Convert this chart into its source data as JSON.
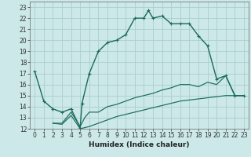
{
  "title": "",
  "xlabel": "Humidex (Indice chaleur)",
  "ylabel": "",
  "bg_color": "#cce8e8",
  "grid_color": "#aacece",
  "line_color": "#1a6b5a",
  "xlim": [
    -0.5,
    23.5
  ],
  "ylim": [
    12,
    23.5
  ],
  "xticks": [
    0,
    1,
    2,
    3,
    4,
    5,
    6,
    7,
    8,
    9,
    10,
    11,
    12,
    13,
    14,
    15,
    16,
    17,
    18,
    19,
    20,
    21,
    22,
    23
  ],
  "yticks": [
    12,
    13,
    14,
    15,
    16,
    17,
    18,
    19,
    20,
    21,
    22,
    23
  ],
  "series1_x": [
    0,
    1,
    2,
    3,
    4,
    5,
    5.2,
    6,
    7,
    8,
    9,
    10,
    11,
    12,
    12.5,
    13,
    14,
    15,
    16,
    17,
    18,
    19,
    20,
    21,
    22,
    23
  ],
  "series1_y": [
    17.2,
    14.5,
    13.8,
    13.5,
    13.8,
    12.1,
    14.3,
    17.0,
    19.0,
    19.8,
    20.0,
    20.5,
    22.0,
    22.0,
    22.7,
    22.0,
    22.2,
    21.5,
    21.5,
    21.5,
    20.4,
    19.5,
    16.5,
    16.8,
    15.0,
    15.0
  ],
  "series2_x": [
    2,
    3,
    4,
    5,
    5.5,
    6,
    7,
    8,
    9,
    10,
    11,
    12,
    13,
    14,
    15,
    16,
    17,
    18,
    19,
    20,
    21,
    22,
    23
  ],
  "series2_y": [
    12.5,
    12.5,
    13.5,
    12.2,
    13.0,
    13.5,
    13.5,
    14.0,
    14.2,
    14.5,
    14.8,
    15.0,
    15.2,
    15.5,
    15.7,
    16.0,
    16.0,
    15.8,
    16.2,
    16.0,
    16.8,
    15.0,
    15.0
  ],
  "series3_x": [
    2,
    3,
    4,
    5,
    6,
    7,
    8,
    9,
    10,
    11,
    12,
    13,
    14,
    15,
    16,
    17,
    18,
    19,
    20,
    21,
    22,
    23
  ],
  "series3_y": [
    12.5,
    12.4,
    13.2,
    12.0,
    12.2,
    12.5,
    12.8,
    13.1,
    13.3,
    13.5,
    13.7,
    13.9,
    14.1,
    14.3,
    14.5,
    14.6,
    14.7,
    14.8,
    14.9,
    15.0,
    15.0,
    15.0
  ],
  "marker": "+",
  "markersize": 3,
  "linewidth": 1.0,
  "tick_fontsize": 5.5,
  "xlabel_fontsize": 6.5
}
